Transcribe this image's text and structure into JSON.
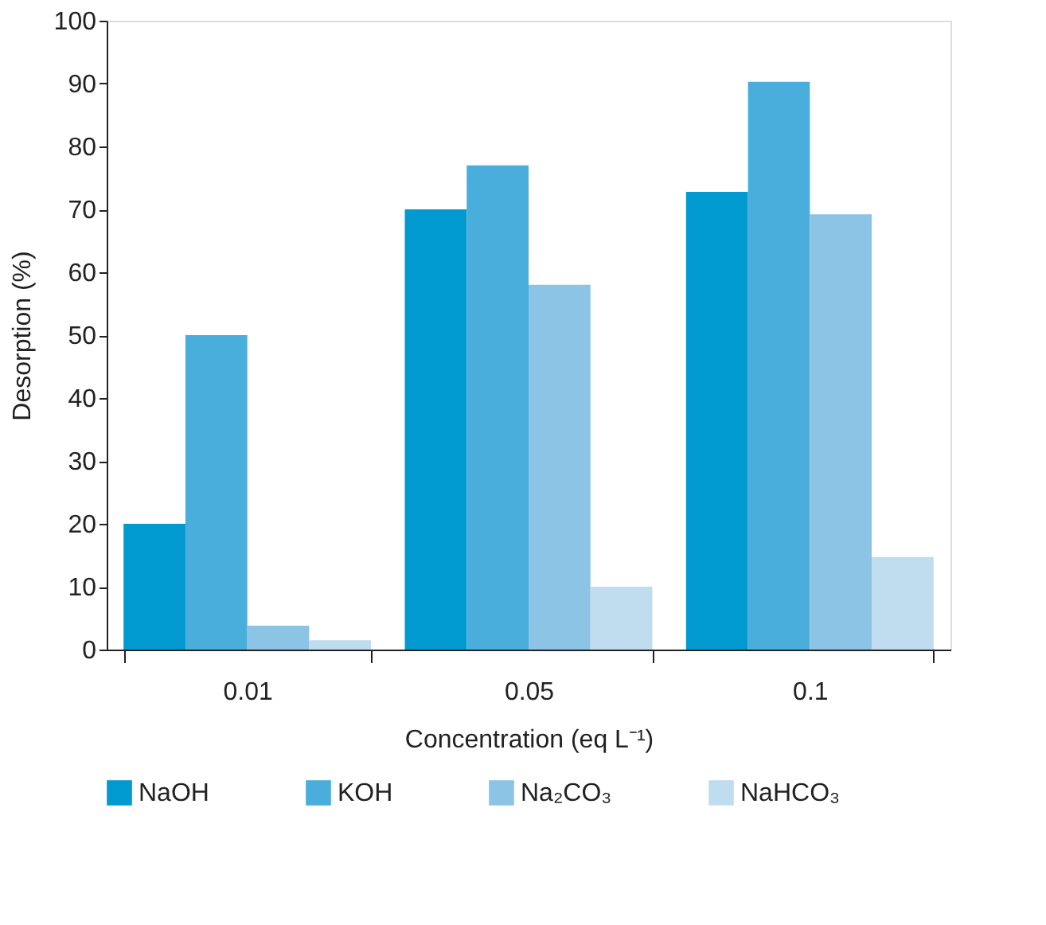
{
  "chart_data": {
    "type": "bar",
    "xlabel": "Concentration (eq L⁻¹)",
    "ylabel": "Desorption (%)",
    "categories": [
      "0.01",
      "0.05",
      "0.1"
    ],
    "series": [
      {
        "name": "NaOH",
        "color": "#0099d0",
        "values": [
          20,
          70,
          72.8
        ]
      },
      {
        "name": "KOH",
        "color": "#4aaedc",
        "values": [
          50,
          77,
          90.3
        ]
      },
      {
        "name": "Na₂CO₃",
        "color": "#8cc4e6",
        "values": [
          3.8,
          58,
          69.2
        ]
      },
      {
        "name": "NaHCO₃",
        "color": "#c0ddf0",
        "values": [
          1.5,
          10,
          14.7
        ]
      }
    ],
    "ylim": [
      0,
      100
    ],
    "yticks": [
      0,
      10,
      20,
      30,
      40,
      50,
      60,
      70,
      80,
      90,
      100
    ],
    "grid": false,
    "legend": "bottom"
  }
}
